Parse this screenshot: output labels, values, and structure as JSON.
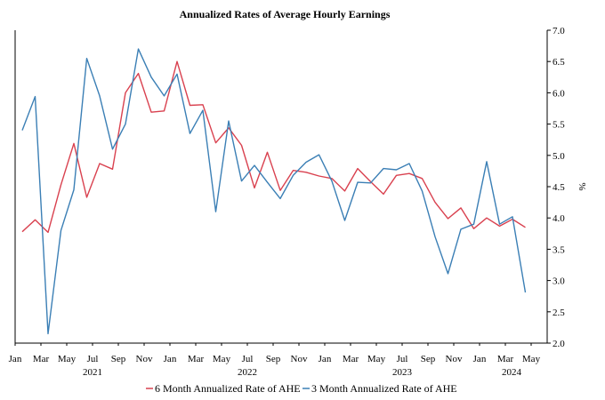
{
  "chart_data": {
    "type": "line",
    "title": "Annualized Rates of Average Hourly Earnings",
    "ylabel": "%",
    "ylim": [
      2.0,
      7.0
    ],
    "yticks": [
      "2.0",
      "2.5",
      "3.0",
      "3.5",
      "4.0",
      "4.5",
      "5.0",
      "5.5",
      "6.0",
      "6.5",
      "7.0"
    ],
    "x": [
      "Jan 2021",
      "Feb 2021",
      "Mar 2021",
      "Apr 2021",
      "May 2021",
      "Jun 2021",
      "Jul 2021",
      "Aug 2021",
      "Sep 2021",
      "Oct 2021",
      "Nov 2021",
      "Dec 2021",
      "Jan 2022",
      "Feb 2022",
      "Mar 2022",
      "Apr 2022",
      "May 2022",
      "Jun 2022",
      "Jul 2022",
      "Aug 2022",
      "Sep 2022",
      "Oct 2022",
      "Nov 2022",
      "Dec 2022",
      "Jan 2023",
      "Feb 2023",
      "Mar 2023",
      "Apr 2023",
      "May 2023",
      "Jun 2023",
      "Jul 2023",
      "Aug 2023",
      "Sep 2023",
      "Oct 2023",
      "Nov 2023",
      "Dec 2023",
      "Jan 2024",
      "Feb 2024",
      "Mar 2024",
      "Apr 2024"
    ],
    "month_ticks": [
      "Jan",
      "Mar",
      "May",
      "Jul",
      "Sep",
      "Nov",
      "Jan",
      "Mar",
      "May",
      "Jul",
      "Sep",
      "Nov",
      "Jan",
      "Mar",
      "May",
      "Jul",
      "Sep",
      "Nov",
      "Jan",
      "Mar",
      "May"
    ],
    "year_labels": [
      "2021",
      "2022",
      "2023",
      "2024"
    ],
    "legend_position": "bottom",
    "grid": false,
    "series": [
      {
        "name": "6 Month Annualized Rate of AHE",
        "color": "#d9414f",
        "values": [
          3.78,
          3.97,
          3.77,
          4.53,
          5.19,
          4.33,
          4.87,
          4.78,
          6.0,
          6.31,
          5.69,
          5.71,
          6.5,
          5.8,
          5.81,
          5.2,
          5.44,
          5.16,
          4.48,
          5.05,
          4.44,
          4.76,
          4.73,
          4.67,
          4.63,
          4.43,
          4.79,
          4.58,
          4.38,
          4.68,
          4.71,
          4.63,
          4.25,
          3.99,
          4.16,
          3.83,
          4.0,
          3.87,
          3.98,
          3.85
        ]
      },
      {
        "name": "3 Month Annualized Rate of AHE",
        "color": "#3b7fb5",
        "values": [
          5.4,
          5.94,
          2.15,
          3.8,
          4.45,
          6.55,
          5.95,
          5.1,
          5.5,
          6.7,
          6.25,
          5.95,
          6.3,
          5.35,
          5.72,
          4.1,
          5.55,
          4.59,
          4.84,
          4.57,
          4.31,
          4.68,
          4.89,
          5.01,
          4.59,
          3.96,
          4.57,
          4.56,
          4.79,
          4.77,
          4.87,
          4.43,
          3.7,
          3.11,
          3.82,
          3.9,
          4.9,
          3.9,
          4.02,
          2.81
        ]
      }
    ]
  }
}
